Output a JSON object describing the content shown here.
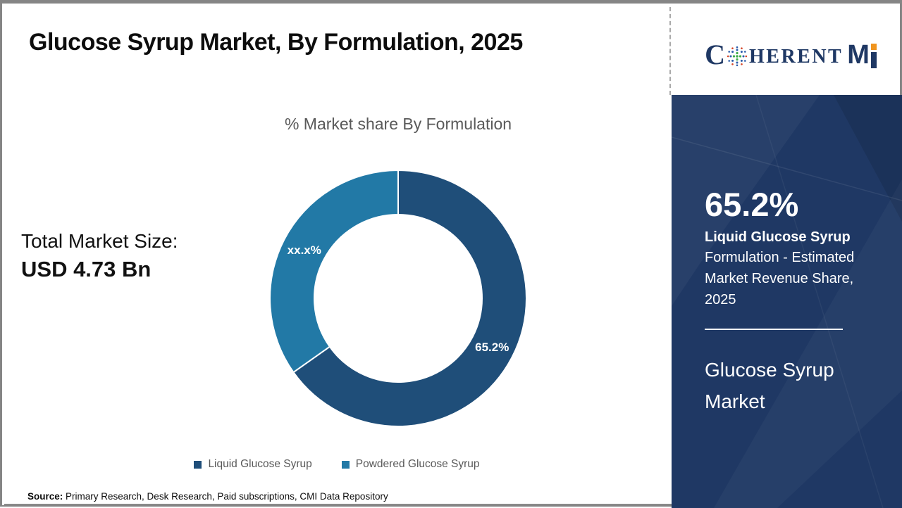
{
  "page": {
    "title": "Glucose Syrup Market, By Formulation, 2025"
  },
  "logo": {
    "c": "C",
    "herent": "HERENT",
    "m": "M",
    "brand_navy": "#1F3864",
    "brand_orange": "#F0951F"
  },
  "chart_data": {
    "type": "pie",
    "variant": "donut",
    "title": "% Market share By Formulation",
    "categories": [
      "Liquid Glucose Syrup",
      "Powdered Glucose Syrup"
    ],
    "values": [
      65.2,
      34.8
    ],
    "slice_labels": [
      "65.2%",
      "xx.x%"
    ],
    "colors": [
      "#1F4E79",
      "#2279A6"
    ],
    "legend_position": "bottom",
    "start_angle_deg": 0,
    "direction": "clockwise"
  },
  "stats": {
    "label": "Total Market Size:",
    "value": "USD 4.73 Bn"
  },
  "sidebar": {
    "share_value": "65.2%",
    "share_title": "Liquid Glucose Syrup",
    "share_desc_line1": "Formulation - Estimated",
    "share_desc_line2": "Market Revenue Share,",
    "share_desc_line3": "2025",
    "market_line1": "Glucose Syrup",
    "market_line2": "Market",
    "background": "#1F3864"
  },
  "footer": {
    "source_label": "Source:",
    "source_text": "Primary Research, Desk Research, Paid subscriptions, CMI Data Repository"
  }
}
